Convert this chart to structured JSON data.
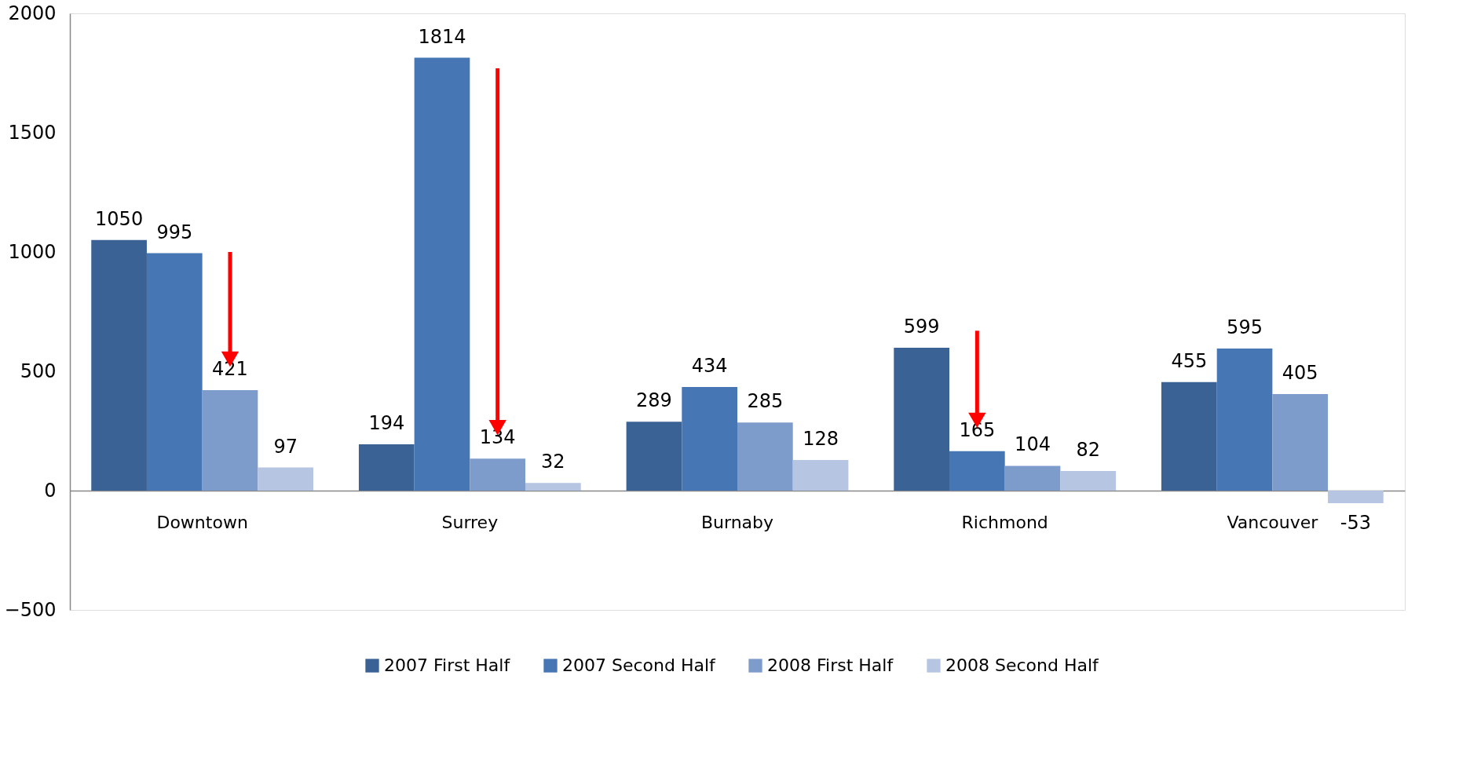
{
  "chart_data": {
    "type": "bar",
    "categories": [
      "Downtown",
      "Surrey",
      "Burnaby",
      "Richmond",
      "Vancouver"
    ],
    "series": [
      {
        "name": "2007 First Half",
        "color": "#3b6294",
        "values": [
          1050,
          194,
          289,
          599,
          455
        ]
      },
      {
        "name": "2007 Second Half",
        "color": "#4677b4",
        "values": [
          995,
          1814,
          434,
          165,
          595
        ]
      },
      {
        "name": "2008 First Half",
        "color": "#7e9ccb",
        "values": [
          421,
          134,
          285,
          104,
          405
        ]
      },
      {
        "name": "2008 Second Half",
        "color": "#b5c5e2",
        "values": [
          97,
          32,
          128,
          82,
          -53
        ]
      }
    ],
    "ylim": [
      -500,
      2000
    ],
    "yticks": [
      -500,
      0,
      500,
      1000,
      1500,
      2000
    ],
    "data_labels": true,
    "legend": "bottom",
    "grid": false
  }
}
